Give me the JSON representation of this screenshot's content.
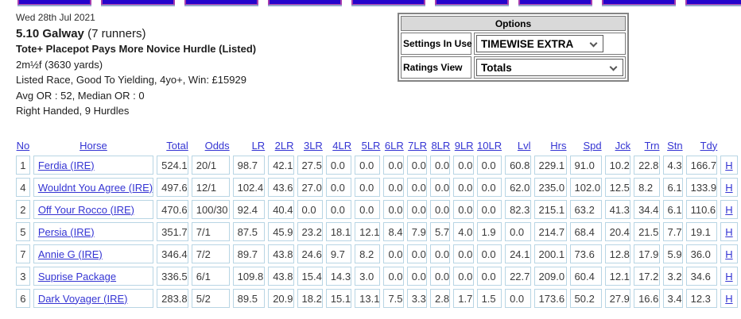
{
  "tabs": {
    "count": 9
  },
  "race_info": {
    "date": "Wed 28th Jul 2021",
    "time_course": "5.10 Galway",
    "runners": "(7 runners)",
    "race_name": "Tote+ Placepot Pays More Novice Hurdle (Listed)",
    "distance": "2m½f (3630 yards)",
    "conditions": "Listed Race, Good To Yielding, 4yo+, Win: £15929",
    "or_stats": "Avg OR : 52, Median OR : 0",
    "track": "Right Handed, 9 Hurdles"
  },
  "options_panel": {
    "title": "Options",
    "rows": [
      {
        "label": "Settings In Use",
        "value": "TIMEWISE EXTRA"
      },
      {
        "label": "Ratings View",
        "value": "Totals"
      }
    ]
  },
  "table": {
    "headers": [
      "No",
      "Horse",
      "Total",
      "Odds",
      "LR",
      "2LR",
      "3LR",
      "4LR",
      "5LR",
      "6LR",
      "7LR",
      "8LR",
      "9LR",
      "10LR",
      "Lvl",
      "Hrs",
      "Spd",
      "Jck",
      "Trn",
      "Stn",
      "Tdy"
    ],
    "rows": [
      {
        "no": "1",
        "horse": "Ferdia (IRE)",
        "values": [
          "524.1",
          "20/1",
          "98.7",
          "42.1",
          "27.5",
          "0.0",
          "0.0",
          "0.0",
          "0.0",
          "0.0",
          "0.0",
          "0.0",
          "60.8",
          "229.1",
          "91.0",
          "10.2",
          "22.8",
          "4.3",
          "166.7"
        ],
        "hist": "H"
      },
      {
        "no": "4",
        "horse": "Wouldnt You Agree (IRE)",
        "values": [
          "497.6",
          "12/1",
          "102.4",
          "43.6",
          "27.0",
          "0.0",
          "0.0",
          "0.0",
          "0.0",
          "0.0",
          "0.0",
          "0.0",
          "62.0",
          "235.0",
          "102.0",
          "12.5",
          "8.2",
          "6.1",
          "133.9"
        ],
        "hist": "H"
      },
      {
        "no": "2",
        "horse": "Off Your Rocco (IRE)",
        "values": [
          "470.6",
          "100/30",
          "92.4",
          "40.4",
          "0.0",
          "0.0",
          "0.0",
          "0.0",
          "0.0",
          "0.0",
          "0.0",
          "0.0",
          "82.3",
          "215.1",
          "63.2",
          "41.3",
          "34.4",
          "6.1",
          "110.6"
        ],
        "hist": "H"
      },
      {
        "no": "5",
        "horse": "Persia (IRE)",
        "values": [
          "351.7",
          "7/1",
          "87.5",
          "45.9",
          "23.2",
          "18.1",
          "12.1",
          "8.4",
          "7.9",
          "5.7",
          "4.0",
          "1.9",
          "0.0",
          "214.7",
          "68.4",
          "20.4",
          "21.5",
          "7.7",
          "19.1"
        ],
        "hist": "H"
      },
      {
        "no": "7",
        "horse": "Annie G (IRE)",
        "values": [
          "346.4",
          "7/2",
          "89.7",
          "43.8",
          "24.6",
          "9.7",
          "8.2",
          "0.0",
          "0.0",
          "0.0",
          "0.0",
          "0.0",
          "24.1",
          "200.1",
          "73.6",
          "12.8",
          "17.9",
          "5.9",
          "36.0"
        ],
        "hist": "H"
      },
      {
        "no": "3",
        "horse": "Suprise Package",
        "values": [
          "336.5",
          "6/1",
          "109.8",
          "43.8",
          "15.4",
          "14.3",
          "3.0",
          "0.0",
          "0.0",
          "0.0",
          "0.0",
          "0.0",
          "22.7",
          "209.0",
          "60.4",
          "12.1",
          "17.2",
          "3.2",
          "34.6"
        ],
        "hist": "H"
      },
      {
        "no": "6",
        "horse": "Dark Voyager (IRE)",
        "values": [
          "283.8",
          "5/2",
          "89.5",
          "20.9",
          "18.2",
          "15.1",
          "13.1",
          "7.5",
          "3.3",
          "2.8",
          "1.7",
          "1.5",
          "0.0",
          "173.6",
          "50.2",
          "27.9",
          "16.6",
          "3.4",
          "12.3"
        ],
        "hist": "H"
      }
    ]
  },
  "colors": {
    "link_blue": "#3434d3",
    "cell_border": "#b8d5e4",
    "tab_fill": "#2404cc",
    "tab_edge": "#a63aae",
    "tab_shadow": "#93a9cc",
    "options_header_bg": "#d9d9d9"
  }
}
